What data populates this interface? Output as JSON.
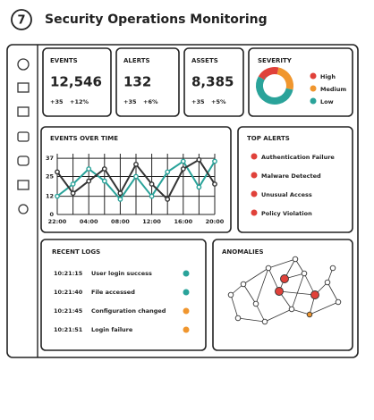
{
  "header": {
    "logo": "7",
    "title": "Security Operations Monitoring"
  },
  "kpis": [
    {
      "label": "EVENTS",
      "value": "12,546",
      "changes": [
        "+35",
        "+12%"
      ]
    },
    {
      "label": "ALERTS",
      "value": "132",
      "changes": [
        "+35",
        "+6%"
      ]
    },
    {
      "label": "ASSETS",
      "value": "8,385",
      "changes": [
        "+35",
        "+5%"
      ]
    }
  ],
  "severity": {
    "title": "SEVERITY",
    "slices": [
      {
        "name": "High",
        "color": "#e0413a",
        "value": 20
      },
      {
        "name": "Medium",
        "color": "#f0962e",
        "value": 25
      },
      {
        "name": "Low",
        "color": "#2aa39a",
        "value": 55
      }
    ]
  },
  "events_chart": {
    "type": "line",
    "title": "EVENTS OVER TIME",
    "categories": [
      "22:00",
      null,
      "04:00",
      null,
      "08:00",
      null,
      "12:00",
      null,
      "16:00",
      null,
      "20:00"
    ],
    "ylim": [
      0,
      40
    ],
    "yticks": [
      0,
      12,
      25,
      37
    ],
    "grid": true,
    "series": [
      {
        "color": "#2aa39a",
        "values": [
          12,
          20,
          30,
          22,
          10,
          25,
          12,
          28,
          35,
          18,
          35
        ]
      },
      {
        "color": "#333333",
        "values": [
          28,
          14,
          22,
          30,
          14,
          33,
          20,
          10,
          30,
          36,
          20
        ]
      }
    ]
  },
  "top_alerts": {
    "title": "TOP ALERTS",
    "color": "#e0413a",
    "items": [
      "Authentication Failure",
      "Malware Detected",
      "Unusual Access",
      "Policy Violation"
    ]
  },
  "recent_logs": {
    "title": "RECENT LOGS",
    "rows": [
      {
        "time": "10:21:15",
        "message": "User login success",
        "color": "#2aa39a"
      },
      {
        "time": "10:21:40",
        "message": "File accessed",
        "color": "#2aa39a"
      },
      {
        "time": "10:21:45",
        "message": "Configuration changed",
        "color": "#f0962e"
      },
      {
        "time": "10:21:51",
        "message": "Login failure",
        "color": "#f0962e"
      }
    ]
  },
  "anomalies": {
    "title": "ANOMALIES"
  }
}
